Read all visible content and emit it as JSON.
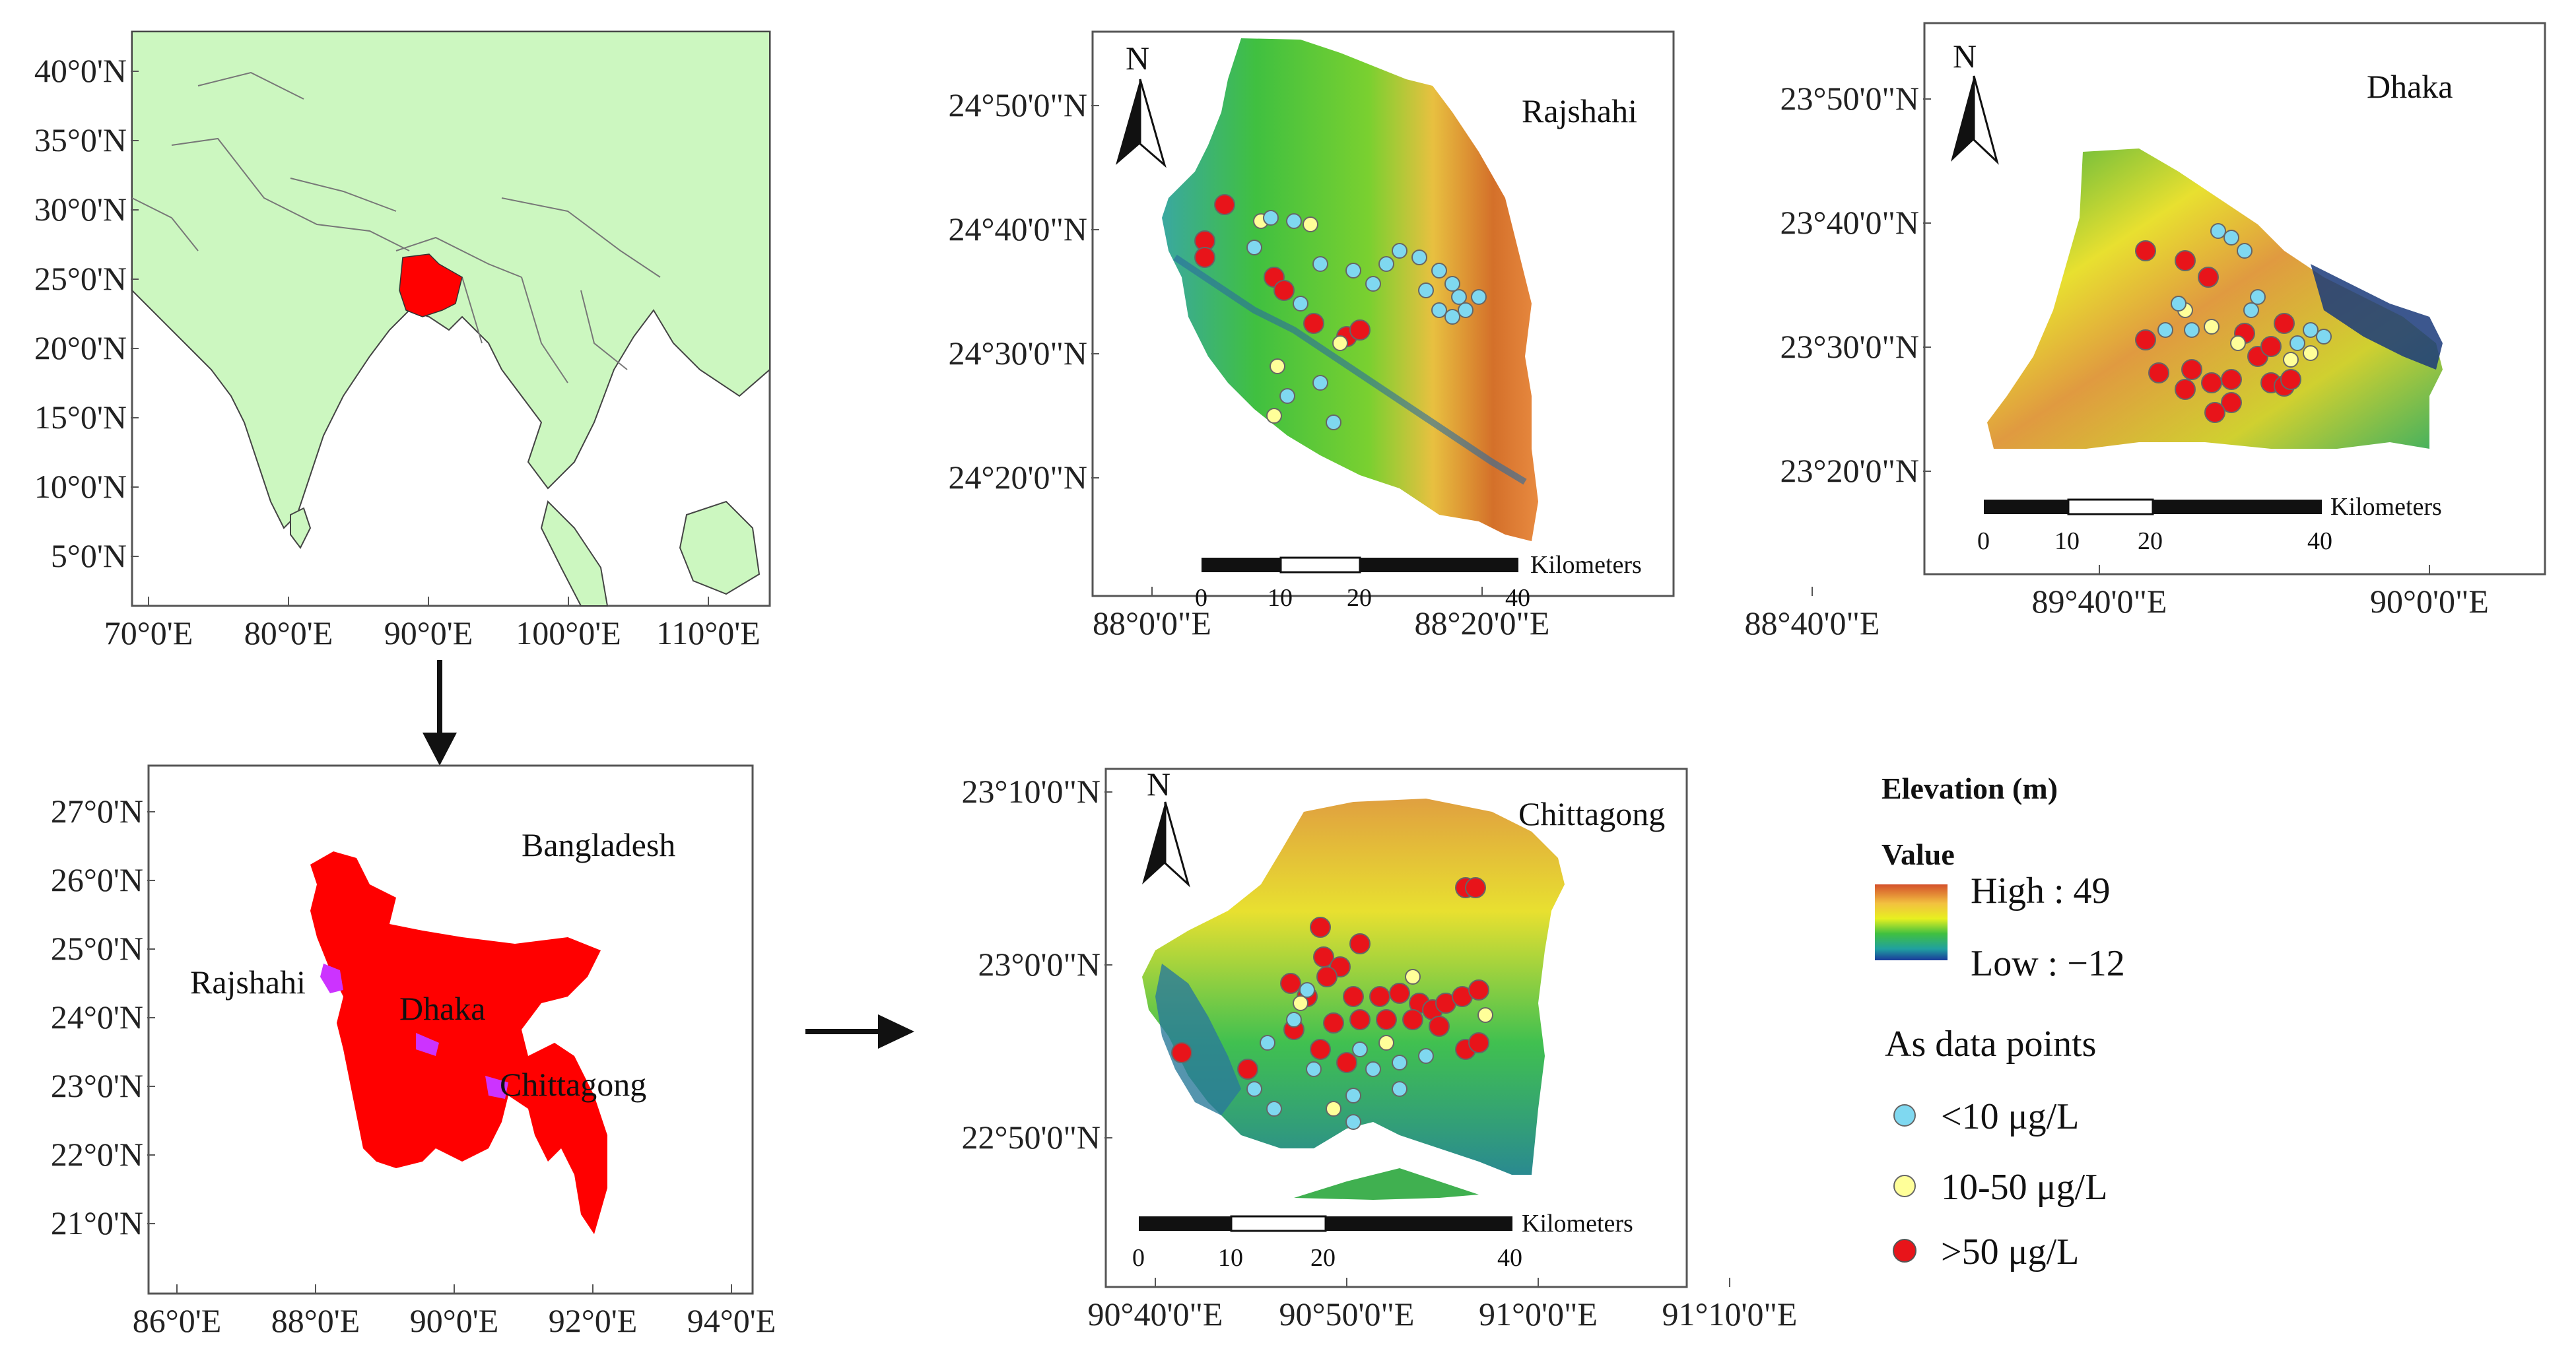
{
  "panels": {
    "asia": {
      "y_ticks": [
        "40°0'N",
        "35°0'N",
        "30°0'N",
        "25°0'N",
        "20°0'N",
        "15°0'N",
        "10°0'N",
        "5°0'N"
      ],
      "x_ticks": [
        "70°0'E",
        "80°0'E",
        "90°0'E",
        "100°0'E",
        "110°0'E"
      ],
      "land_color": "#ccf7c0",
      "highlight_color": "#ff0000"
    },
    "bangladesh": {
      "title": "Bangladesh",
      "y_ticks": [
        "27°0'N",
        "26°0'N",
        "25°0'N",
        "24°0'N",
        "23°0'N",
        "22°0'N",
        "21°0'N"
      ],
      "x_ticks": [
        "86°0'E",
        "88°0'E",
        "90°0'E",
        "92°0'E",
        "94°0'E"
      ],
      "place_labels": [
        "Rajshahi",
        "Dhaka",
        "Chittagong"
      ],
      "country_color": "#ff0000",
      "study_area_color": "#cc33ff"
    },
    "rajshahi": {
      "title": "Rajshahi",
      "y_ticks": [
        "24°50'0\"N",
        "24°40'0\"N",
        "24°30'0\"N",
        "24°20'0\"N"
      ],
      "x_ticks": [
        "88°0'0\"E",
        "88°20'0\"E",
        "88°40'0\"E"
      ],
      "north": "N",
      "scale_ticks": [
        "0",
        "10",
        "20",
        "40"
      ],
      "scale_unit": "Kilometers"
    },
    "dhaka": {
      "title": "Dhaka",
      "y_ticks": [
        "23°50'0\"N",
        "23°40'0\"N",
        "23°30'0\"N",
        "23°20'0\"N"
      ],
      "x_ticks": [
        "89°40'0\"E",
        "90°0'0\"E"
      ],
      "north": "N",
      "scale_ticks": [
        "0",
        "10",
        "20",
        "40"
      ],
      "scale_unit": "Kilometers"
    },
    "chittagong": {
      "title": "Chittagong",
      "y_ticks": [
        "23°10'0\"N",
        "23°0'0\"N",
        "22°50'0\"N"
      ],
      "x_ticks": [
        "90°40'0\"E",
        "90°50'0\"E",
        "91°0'0\"E",
        "91°10'0\"E"
      ],
      "north": "N",
      "scale_ticks": [
        "0",
        "10",
        "20",
        "40"
      ],
      "scale_unit": "Kilometers"
    }
  },
  "legend": {
    "elevation_title": "Elevation (m)",
    "value_label": "Value",
    "high": "High : 49",
    "low": "Low : −12",
    "points_title": "As data points",
    "classes": [
      {
        "label": "<10 μg/L",
        "color": "#7fd8f0"
      },
      {
        "label": "10-50 μg/L",
        "color": "#ffff99"
      },
      {
        "label": ">50 μg/L",
        "color": "#e8141a"
      }
    ]
  }
}
